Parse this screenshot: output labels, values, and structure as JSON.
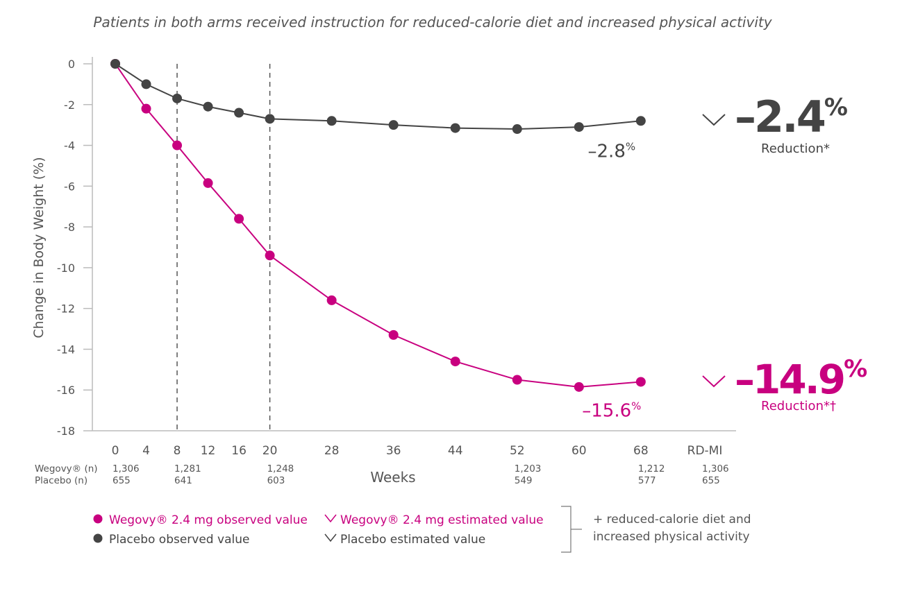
{
  "chart_data": {
    "type": "line",
    "title": "Patients in both arms received instruction for reduced-calorie diet and increased physical activity",
    "ylabel": "Change in Body Weight (%)",
    "xlabel": "Weeks",
    "ylim": [
      -18,
      0
    ],
    "yticks": [
      0,
      -2,
      -4,
      -6,
      -8,
      -10,
      -12,
      -14,
      -16,
      -18
    ],
    "xticks": [
      "0",
      "4",
      "8",
      "12",
      "16",
      "20",
      "28",
      "36",
      "44",
      "52",
      "60",
      "68",
      "RD-MI"
    ],
    "x": [
      0,
      4,
      8,
      12,
      16,
      20,
      28,
      36,
      44,
      52,
      60,
      68
    ],
    "dashed_reference_weeks": [
      8,
      20
    ],
    "colors": {
      "wegovy": "#c8007f",
      "placebo": "#444444"
    },
    "series": [
      {
        "name": "Wegovy® 2.4 mg observed value",
        "color": "#c8007f",
        "values": [
          0,
          -2.2,
          -4.0,
          -5.85,
          -7.6,
          -9.4,
          -11.6,
          -13.3,
          -14.6,
          -15.5,
          -15.85,
          -15.6
        ],
        "end_label": "–15.6",
        "end_label_sup": "%"
      },
      {
        "name": "Placebo observed value",
        "color": "#444444",
        "values": [
          0,
          -1.0,
          -1.7,
          -2.1,
          -2.4,
          -2.7,
          -2.8,
          -3.0,
          -3.15,
          -3.2,
          -3.1,
          -2.8
        ],
        "end_label": "–2.8",
        "end_label_sup": "%"
      }
    ],
    "estimated": [
      {
        "name": "Wegovy® 2.4 mg estimated value",
        "value": "–14.9",
        "sup": "%",
        "caption": "Reduction*†",
        "color": "#c8007f"
      },
      {
        "name": "Placebo estimated value",
        "value": "–2.4",
        "sup": "%",
        "caption": "Reduction*",
        "color": "#444444"
      }
    ],
    "n_table": {
      "rows": [
        {
          "label": "Wegovy® (n)",
          "cells": [
            {
              "x": "0",
              "v": "1,306"
            },
            {
              "x": "8",
              "v": "1,281"
            },
            {
              "x": "20",
              "v": "1,248"
            },
            {
              "x": "52",
              "v": "1,203"
            },
            {
              "x": "68",
              "v": "1,212"
            },
            {
              "x": "RD-MI",
              "v": "1,306"
            }
          ]
        },
        {
          "label": "Placebo (n)",
          "cells": [
            {
              "x": "0",
              "v": "655"
            },
            {
              "x": "8",
              "v": "641"
            },
            {
              "x": "20",
              "v": "603"
            },
            {
              "x": "52",
              "v": "549"
            },
            {
              "x": "68",
              "v": "577"
            },
            {
              "x": "RD-MI",
              "v": "655"
            }
          ]
        }
      ]
    },
    "legend": {
      "items": [
        {
          "label": "Wegovy® 2.4 mg observed value",
          "marker": "dot",
          "color": "#c8007f"
        },
        {
          "label": "Wegovy® 2.4 mg estimated value",
          "marker": "chevron",
          "color": "#c8007f"
        },
        {
          "label": "Placebo observed value",
          "marker": "dot",
          "color": "#444444"
        },
        {
          "label": "Placebo estimated value",
          "marker": "chevron",
          "color": "#444444"
        }
      ],
      "bracket_note": [
        "+ reduced-calorie diet and",
        "increased physical activity"
      ],
      "placement": "bottom"
    },
    "grid": false
  }
}
